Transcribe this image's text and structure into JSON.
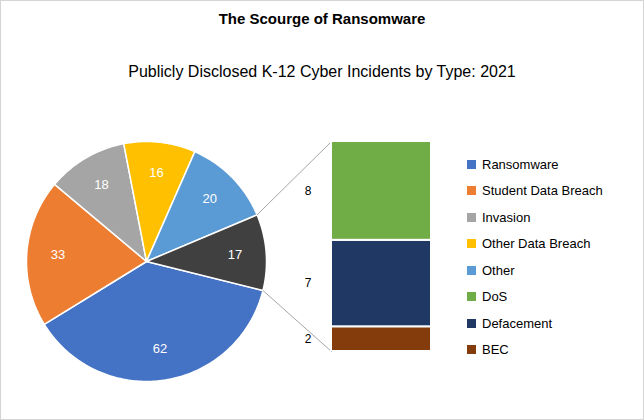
{
  "chart_data": [
    {
      "type": "pie",
      "title": "The Scourge of Ransomware",
      "subtitle": "Publicly Disclosed K-12 Cyber Incidents by Type: 2021",
      "categories": [
        "Ransomware",
        "Student Data Breach",
        "Invasion",
        "Other Data Breach",
        "Other",
        null
      ],
      "values": [
        62,
        33,
        18,
        16,
        20,
        17
      ],
      "colors": [
        "#4472c4",
        "#ed7d31",
        "#a5a5a5",
        "#ffc000",
        "#5b9bd5",
        "#404040"
      ],
      "data_labels": true,
      "legend": "right"
    },
    {
      "type": "bar",
      "stacked": true,
      "categories": [
        "DoS",
        "Defacement",
        "BEC"
      ],
      "values": [
        8,
        7,
        2
      ],
      "colors": [
        "#70ad47",
        "#1f3864",
        "#843c0c"
      ],
      "data_labels": true,
      "legend": "right"
    }
  ]
}
